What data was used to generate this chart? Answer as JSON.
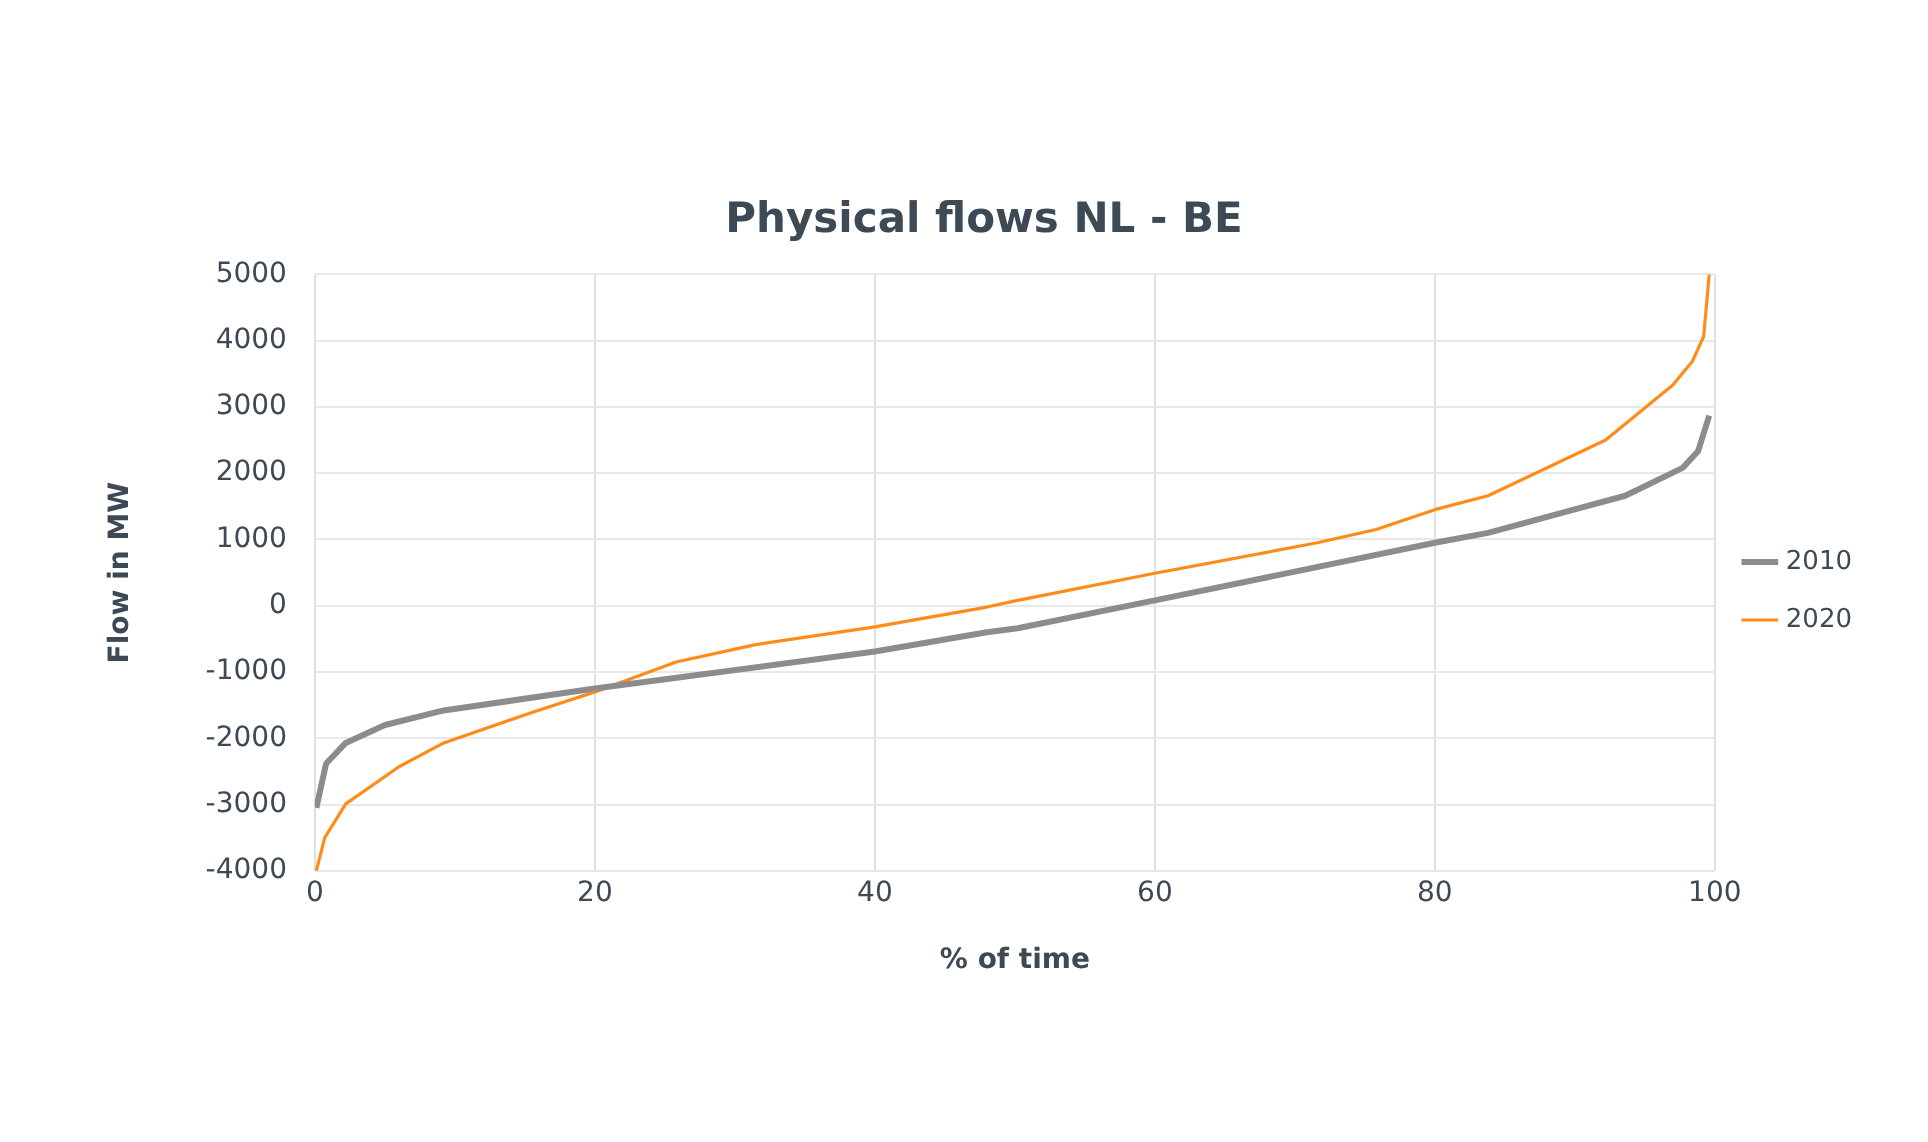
{
  "chart_data": {
    "type": "line",
    "title": "Physical flows NL - BE",
    "xlabel": "% of time",
    "ylabel": "Flow in MW",
    "xlim": [
      0,
      100
    ],
    "xticks": [
      0,
      20,
      40,
      60,
      80,
      100
    ],
    "ylim": [
      -4000,
      5000
    ],
    "yticks": [
      -4000,
      -3000,
      -2000,
      -1000,
      0,
      1000,
      2000,
      3000,
      4000,
      5000
    ],
    "grid": true,
    "legend": "right",
    "marker": "none",
    "series": [
      {
        "name": "2010",
        "color": "#8c8c8c",
        "x": [
          0.1,
          0.8,
          2.2,
          5,
          9.2,
          20,
          40,
          48,
          50.2,
          60,
          80,
          83.8,
          93.6,
          97.7,
          98.8,
          99.6
        ],
        "values": [
          -3050,
          -2380,
          -2070,
          -1800,
          -1580,
          -1250,
          -690,
          -400,
          -340,
          80,
          950,
          1100,
          1660,
          2080,
          2330,
          2870
        ]
      },
      {
        "name": "2020",
        "color": "#ff8c1a",
        "x": [
          0.1,
          0.7,
          2.2,
          6,
          9.2,
          15.5,
          20,
          25.8,
          31.4,
          40,
          48,
          50.2,
          60,
          71.6,
          75.8,
          80,
          83.8,
          92.2,
          97,
          98.4,
          99.2,
          99.6
        ],
        "values": [
          -4000,
          -3500,
          -2990,
          -2430,
          -2070,
          -1610,
          -1300,
          -850,
          -590,
          -320,
          -20,
          80,
          490,
          950,
          1150,
          1450,
          1660,
          2500,
          3330,
          3690,
          4060,
          5000
        ]
      }
    ]
  }
}
